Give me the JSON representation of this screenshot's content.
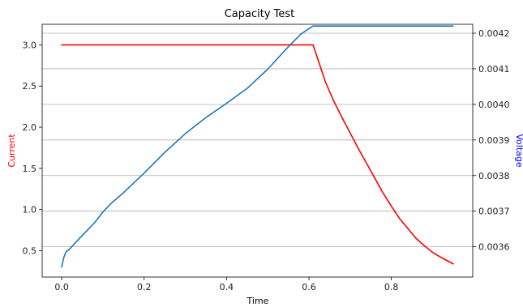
{
  "chart_data": {
    "type": "line",
    "title": "Capacity Test",
    "xlabel": "Time",
    "ylabel_left": "Current",
    "ylabel_right": "Voltage",
    "xlim": [
      -0.0475,
      0.9975
    ],
    "ylim_left": [
      0.18,
      3.25
    ],
    "ylim_right": [
      0.003515,
      0.004225
    ],
    "x_ticks": [
      0.0,
      0.2,
      0.4,
      0.6,
      0.8
    ],
    "x_tick_labels": [
      "0.0",
      "0.2",
      "0.4",
      "0.6",
      "0.8"
    ],
    "y_left_ticks": [
      0.5,
      1.0,
      1.5,
      2.0,
      2.5,
      3.0
    ],
    "y_left_tick_labels": [
      "0.5",
      "1.0",
      "1.5",
      "2.0",
      "2.5",
      "3.0"
    ],
    "y_right_ticks": [
      0.0036,
      0.0037,
      0.0038,
      0.0039,
      0.004,
      0.0041,
      0.0042
    ],
    "y_right_tick_labels": [
      "0.0036",
      "0.0037",
      "0.0038",
      "0.0039",
      "0.0040",
      "0.0041",
      "0.0042"
    ],
    "grid": "horizontal, right axis",
    "series": [
      {
        "name": "Current",
        "axis": "left",
        "color": "#ff0000",
        "x": [
          0.0,
          0.1,
          0.2,
          0.3,
          0.4,
          0.5,
          0.6,
          0.61,
          0.62,
          0.64,
          0.66,
          0.68,
          0.7,
          0.72,
          0.74,
          0.76,
          0.78,
          0.8,
          0.82,
          0.84,
          0.86,
          0.88,
          0.9,
          0.92,
          0.95
        ],
        "y": [
          3.0,
          3.0,
          3.0,
          3.0,
          3.0,
          3.0,
          3.0,
          3.0,
          2.85,
          2.55,
          2.32,
          2.12,
          1.93,
          1.74,
          1.56,
          1.38,
          1.2,
          1.04,
          0.89,
          0.77,
          0.65,
          0.56,
          0.48,
          0.42,
          0.34
        ]
      },
      {
        "name": "Voltage",
        "axis": "right",
        "color": "#1f77b4",
        "x": [
          0.0,
          0.002,
          0.005,
          0.01,
          0.02,
          0.05,
          0.08,
          0.1,
          0.12,
          0.15,
          0.2,
          0.25,
          0.3,
          0.35,
          0.4,
          0.45,
          0.5,
          0.55,
          0.58,
          0.6,
          0.61,
          0.65,
          0.7,
          0.75,
          0.8,
          0.85,
          0.9,
          0.95
        ],
        "y": [
          0.003543,
          0.003555,
          0.00357,
          0.003585,
          0.003595,
          0.003632,
          0.003668,
          0.003698,
          0.003722,
          0.003752,
          0.003807,
          0.003865,
          0.003918,
          0.003963,
          0.004003,
          0.004045,
          0.004099,
          0.004162,
          0.004197,
          0.004213,
          0.00422,
          0.00422,
          0.00422,
          0.00422,
          0.00422,
          0.00422,
          0.00422,
          0.00422
        ]
      }
    ]
  }
}
